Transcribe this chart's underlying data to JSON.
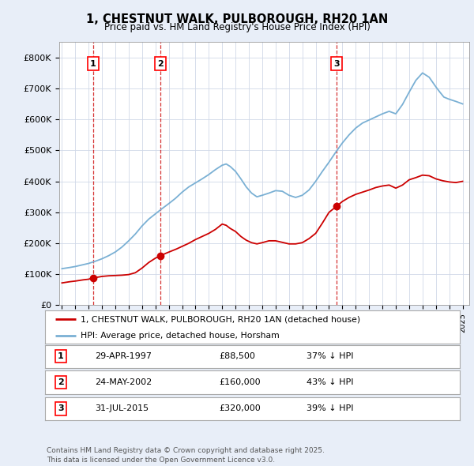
{
  "title": "1, CHESTNUT WALK, PULBOROUGH, RH20 1AN",
  "subtitle": "Price paid vs. HM Land Registry's House Price Index (HPI)",
  "ylabel_ticks": [
    "£0",
    "£100K",
    "£200K",
    "£300K",
    "£400K",
    "£500K",
    "£600K",
    "£700K",
    "£800K"
  ],
  "ytick_vals": [
    0,
    100000,
    200000,
    300000,
    400000,
    500000,
    600000,
    700000,
    800000
  ],
  "ylim": [
    0,
    850000
  ],
  "xlim_start": 1994.8,
  "xlim_end": 2025.5,
  "background_color": "#e8eef8",
  "plot_bg_color": "#ffffff",
  "line_color_red": "#cc0000",
  "line_color_blue": "#7ab0d4",
  "transaction_dates": [
    1997.33,
    2002.39,
    2015.58
  ],
  "transaction_prices": [
    88500,
    160000,
    320000
  ],
  "transaction_labels": [
    "1",
    "2",
    "3"
  ],
  "legend_label_red": "1, CHESTNUT WALK, PULBOROUGH, RH20 1AN (detached house)",
  "legend_label_blue": "HPI: Average price, detached house, Horsham",
  "table_rows": [
    {
      "num": "1",
      "date": "29-APR-1997",
      "price": "£88,500",
      "pct": "37% ↓ HPI"
    },
    {
      "num": "2",
      "date": "24-MAY-2002",
      "price": "£160,000",
      "pct": "43% ↓ HPI"
    },
    {
      "num": "3",
      "date": "31-JUL-2015",
      "price": "£320,000",
      "pct": "39% ↓ HPI"
    }
  ],
  "footer": "Contains HM Land Registry data © Crown copyright and database right 2025.\nThis data is licensed under the Open Government Licence v3.0.",
  "red_line_x": [
    1995.0,
    1995.3,
    1995.6,
    1996.0,
    1996.3,
    1996.6,
    1997.0,
    1997.33,
    1997.6,
    1998.0,
    1998.5,
    1999.0,
    1999.5,
    2000.0,
    2000.5,
    2001.0,
    2001.5,
    2002.0,
    2002.39,
    2002.8,
    2003.2,
    2003.6,
    2004.0,
    2004.5,
    2005.0,
    2005.5,
    2006.0,
    2006.5,
    2007.0,
    2007.3,
    2007.6,
    2008.0,
    2008.4,
    2008.8,
    2009.2,
    2009.6,
    2010.0,
    2010.5,
    2011.0,
    2011.5,
    2012.0,
    2012.5,
    2013.0,
    2013.5,
    2014.0,
    2014.5,
    2015.0,
    2015.58,
    2016.0,
    2016.5,
    2017.0,
    2017.5,
    2018.0,
    2018.5,
    2019.0,
    2019.5,
    2020.0,
    2020.5,
    2021.0,
    2021.5,
    2022.0,
    2022.5,
    2023.0,
    2023.5,
    2024.0,
    2024.5,
    2025.0
  ],
  "red_line_y": [
    72000,
    74000,
    76000,
    78000,
    80000,
    82000,
    84000,
    88500,
    90000,
    93000,
    95000,
    96000,
    97000,
    99000,
    105000,
    120000,
    138000,
    152000,
    160000,
    168000,
    175000,
    182000,
    190000,
    200000,
    212000,
    222000,
    232000,
    245000,
    262000,
    258000,
    248000,
    238000,
    222000,
    210000,
    202000,
    198000,
    202000,
    208000,
    208000,
    203000,
    198000,
    198000,
    202000,
    215000,
    232000,
    265000,
    300000,
    320000,
    335000,
    348000,
    358000,
    365000,
    372000,
    380000,
    385000,
    388000,
    378000,
    388000,
    405000,
    412000,
    420000,
    418000,
    408000,
    402000,
    398000,
    396000,
    400000
  ],
  "blue_line_x": [
    1995.0,
    1995.3,
    1995.6,
    1996.0,
    1996.3,
    1996.6,
    1997.0,
    1997.5,
    1998.0,
    1998.5,
    1999.0,
    1999.5,
    2000.0,
    2000.5,
    2001.0,
    2001.5,
    2002.0,
    2002.5,
    2003.0,
    2003.5,
    2004.0,
    2004.5,
    2005.0,
    2005.5,
    2006.0,
    2006.5,
    2007.0,
    2007.3,
    2007.6,
    2008.0,
    2008.4,
    2008.8,
    2009.2,
    2009.6,
    2010.0,
    2010.5,
    2011.0,
    2011.5,
    2012.0,
    2012.5,
    2013.0,
    2013.5,
    2014.0,
    2014.5,
    2015.0,
    2015.5,
    2016.0,
    2016.5,
    2017.0,
    2017.5,
    2018.0,
    2018.5,
    2019.0,
    2019.5,
    2020.0,
    2020.5,
    2021.0,
    2021.5,
    2022.0,
    2022.5,
    2023.0,
    2023.3,
    2023.6,
    2024.0,
    2024.5,
    2025.0
  ],
  "blue_line_y": [
    118000,
    120000,
    122000,
    125000,
    128000,
    131000,
    135000,
    142000,
    150000,
    160000,
    172000,
    188000,
    208000,
    230000,
    256000,
    278000,
    295000,
    312000,
    328000,
    345000,
    365000,
    382000,
    395000,
    408000,
    422000,
    438000,
    452000,
    456000,
    448000,
    432000,
    408000,
    382000,
    362000,
    350000,
    355000,
    362000,
    370000,
    368000,
    355000,
    348000,
    355000,
    372000,
    400000,
    432000,
    462000,
    494000,
    524000,
    550000,
    572000,
    588000,
    598000,
    608000,
    618000,
    626000,
    618000,
    648000,
    688000,
    726000,
    750000,
    736000,
    705000,
    688000,
    672000,
    665000,
    658000,
    650000
  ]
}
